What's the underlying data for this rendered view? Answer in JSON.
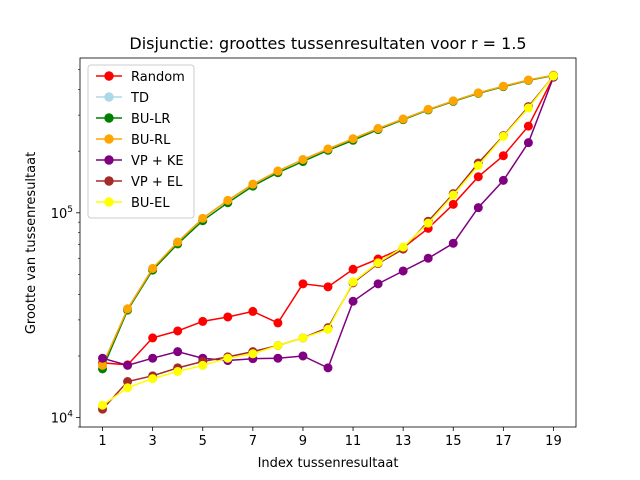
{
  "chart_data": {
    "type": "line",
    "title": "Disjunctie: groottes tussenresultaten voor r = 1.5",
    "xlabel": "Index tussenresultaat",
    "ylabel": "Grootte van tussenresultaat",
    "x": [
      1,
      2,
      3,
      4,
      5,
      6,
      7,
      8,
      9,
      10,
      11,
      12,
      13,
      14,
      15,
      16,
      17,
      18,
      19
    ],
    "xticks": [
      1,
      3,
      5,
      7,
      9,
      11,
      13,
      15,
      17,
      19
    ],
    "yscale": "log",
    "ylim": [
      9000,
      570000
    ],
    "yticks": [
      {
        "value": 10000,
        "base": "10",
        "exp": "4"
      },
      {
        "value": 100000,
        "base": "10",
        "exp": "5"
      }
    ],
    "legend_position": "top-left",
    "series": [
      {
        "name": "Random",
        "color": "#ff0000",
        "values": [
          18500,
          18100,
          24500,
          26500,
          29500,
          31000,
          33000,
          29000,
          45000,
          43500,
          53000,
          59500,
          67500,
          84000,
          110000,
          150000,
          190000,
          265000,
          460000
        ]
      },
      {
        "name": "TD",
        "color": "#add8e6",
        "values": [
          18000,
          34000,
          53500,
          72000,
          94000,
          115000,
          138000,
          160000,
          182000,
          205000,
          230000,
          258000,
          287000,
          320000,
          352000,
          385000,
          415000,
          445000,
          470000
        ]
      },
      {
        "name": "BU-LR",
        "color": "#008000",
        "values": [
          17300,
          33500,
          52500,
          70500,
          91500,
          112000,
          135000,
          157000,
          178000,
          202000,
          226000,
          255000,
          285000,
          318000,
          350000,
          383000,
          413000,
          443000,
          468000
        ]
      },
      {
        "name": "BU-RL",
        "color": "#ffa500",
        "values": [
          18000,
          34000,
          53500,
          72000,
          94000,
          115000,
          138000,
          160000,
          182000,
          205000,
          230000,
          258000,
          287000,
          320000,
          352000,
          385000,
          415000,
          445000,
          470000
        ]
      },
      {
        "name": "VP + KE",
        "color": "#800080",
        "values": [
          19500,
          18000,
          19500,
          21000,
          19500,
          19000,
          19400,
          19500,
          20000,
          17500,
          37000,
          45000,
          52000,
          60000,
          71000,
          106000,
          144000,
          220000,
          460000
        ]
      },
      {
        "name": "VP + EL",
        "color": "#a52a2a",
        "values": [
          11000,
          15000,
          16000,
          17500,
          18800,
          19800,
          21000,
          22500,
          24500,
          27500,
          45500,
          56500,
          66500,
          91000,
          124000,
          175000,
          238000,
          330000,
          465000
        ]
      },
      {
        "name": "BU-EL",
        "color": "#ffff00",
        "values": [
          11500,
          14000,
          15500,
          16800,
          18000,
          19500,
          20500,
          22500,
          24500,
          27000,
          46000,
          57000,
          68000,
          89000,
          122000,
          170000,
          236000,
          325000,
          465000
        ]
      }
    ]
  }
}
